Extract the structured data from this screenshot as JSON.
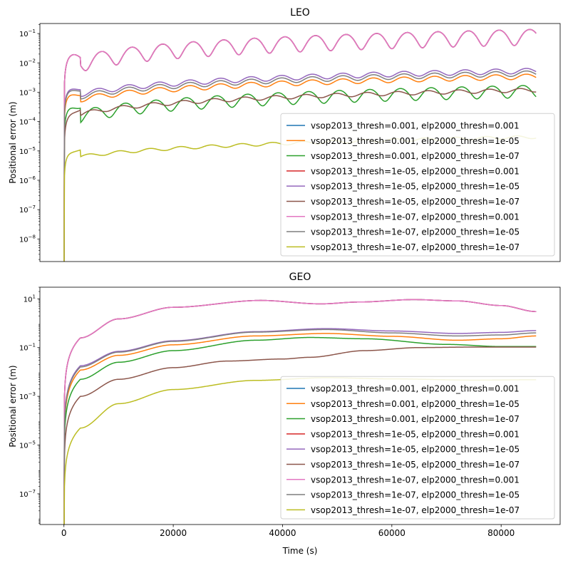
{
  "chart_data": [
    {
      "type": "line",
      "title": "LEO",
      "xlabel": "",
      "ylabel": "Positional error (m)",
      "yscale": "log",
      "xlim": [
        -4400,
        90800
      ],
      "ylim": [
        1.7e-09,
        0.22
      ],
      "x_ticks": [],
      "y_ticks": [
        {
          "value": 1e-08,
          "label": "10",
          "exp": "−8"
        },
        {
          "value": 1e-07,
          "label": "10",
          "exp": "−7"
        },
        {
          "value": 1e-06,
          "label": "10",
          "exp": "−6"
        },
        {
          "value": 1e-05,
          "label": "10",
          "exp": "−5"
        },
        {
          "value": 0.0001,
          "label": "10",
          "exp": "−4"
        },
        {
          "value": 0.001,
          "label": "10",
          "exp": "−3"
        },
        {
          "value": 0.01,
          "label": "10",
          "exp": "−2"
        },
        {
          "value": 0.1,
          "label": "10",
          "exp": "−1"
        }
      ],
      "legend_position": "lower-right",
      "grid": false,
      "series": [
        {
          "name": "vsop2013_thresh=0.001, elp2000_thresh=0.001",
          "color": "#1f77b4",
          "model": {
            "kind": "osc",
            "rise": 0.007,
            "base": 0.006,
            "trend": 0.09,
            "amp": 0.55,
            "period": 5600,
            "phase": 0.2,
            "tau": 600
          }
        },
        {
          "name": "vsop2013_thresh=0.001, elp2000_thresh=1e-05",
          "color": "#ff7f0e",
          "model": {
            "kind": "osc",
            "rise": 0.0003,
            "base": 0.0004,
            "trend": 0.0035,
            "amp": 0.2,
            "period": 5600,
            "phase": 0.9,
            "tau": 500
          }
        },
        {
          "name": "vsop2013_thresh=0.001, elp2000_thresh=1e-07",
          "color": "#2ca02c",
          "model": {
            "kind": "osc",
            "rise": 0.0002,
            "base": 0.0001,
            "trend": 0.0012,
            "amp": 0.45,
            "period": 5600,
            "phase": 1.6,
            "tau": 700
          }
        },
        {
          "name": "vsop2013_thresh=1e-05, elp2000_thresh=0.001",
          "color": "#d62728",
          "model": {
            "kind": "osc",
            "rise": 0.007,
            "base": 0.006,
            "trend": 0.09,
            "amp": 0.55,
            "period": 5600,
            "phase": 0.2,
            "tau": 600
          }
        },
        {
          "name": "vsop2013_thresh=1e-05, elp2000_thresh=1e-05",
          "color": "#9467bd",
          "model": {
            "kind": "osc",
            "rise": 0.0005,
            "base": 0.0006,
            "trend": 0.0055,
            "amp": 0.2,
            "period": 5600,
            "phase": 0.9,
            "tau": 500
          }
        },
        {
          "name": "vsop2013_thresh=1e-05, elp2000_thresh=1e-07",
          "color": "#8c564b",
          "model": {
            "kind": "osc",
            "rise": 9e-05,
            "base": 0.00012,
            "trend": 0.0012,
            "amp": 0.15,
            "period": 5600,
            "phase": 2.2,
            "tau": 900
          }
        },
        {
          "name": "vsop2013_thresh=1e-07, elp2000_thresh=0.001",
          "color": "#e377c2",
          "model": {
            "kind": "osc",
            "rise": 0.007,
            "base": 0.006,
            "trend": 0.09,
            "amp": 0.55,
            "period": 5600,
            "phase": 0.2,
            "tau": 600
          }
        },
        {
          "name": "vsop2013_thresh=1e-07, elp2000_thresh=1e-05",
          "color": "#7f7f7f",
          "model": {
            "kind": "osc",
            "rise": 0.0005,
            "base": 0.0005,
            "trend": 0.0045,
            "amp": 0.2,
            "period": 5600,
            "phase": 0.9,
            "tau": 500
          }
        },
        {
          "name": "vsop2013_thresh=1e-07, elp2000_thresh=1e-07",
          "color": "#bcbd22",
          "model": {
            "kind": "osc",
            "rise": 4.5e-06,
            "base": 5e-06,
            "trend": 3e-05,
            "amp": 0.12,
            "period": 5600,
            "phase": 2.8,
            "tau": 600
          }
        }
      ]
    },
    {
      "type": "line",
      "title": "GEO",
      "xlabel": "Time (s)",
      "ylabel": "Positional error (m)",
      "yscale": "log",
      "xlim": [
        -4400,
        90800
      ],
      "ylim": [
        5.5e-09,
        30
      ],
      "x_ticks": [
        {
          "value": 0,
          "label": "0"
        },
        {
          "value": 20000,
          "label": "20000"
        },
        {
          "value": 40000,
          "label": "40000"
        },
        {
          "value": 60000,
          "label": "60000"
        },
        {
          "value": 80000,
          "label": "80000"
        }
      ],
      "y_ticks": [
        {
          "value": 1e-07,
          "label": "10",
          "exp": "−7"
        },
        {
          "value": 1e-05,
          "label": "10",
          "exp": "−5"
        },
        {
          "value": 0.001,
          "label": "10",
          "exp": "−3"
        },
        {
          "value": 0.1,
          "label": "10",
          "exp": "−1"
        },
        {
          "value": 10,
          "label": "10",
          "exp": "1"
        }
      ],
      "legend_position": "lower-right",
      "grid": false,
      "series": [
        {
          "name": "vsop2013_thresh=0.001, elp2000_thresh=0.001",
          "color": "#1f77b4",
          "model": {
            "kind": "pts",
            "pts": [
              [
                3000,
                0.25
              ],
              [
                10000,
                1.5
              ],
              [
                20000,
                4.5
              ],
              [
                36000,
                8.6
              ],
              [
                47000,
                6.2
              ],
              [
                54000,
                7.4
              ],
              [
                64000,
                9.3
              ],
              [
                72000,
                8.2
              ],
              [
                80000,
                5.3
              ],
              [
                86400,
                3.0
              ]
            ]
          }
        },
        {
          "name": "vsop2013_thresh=0.001, elp2000_thresh=1e-05",
          "color": "#ff7f0e",
          "model": {
            "kind": "pts",
            "pts": [
              [
                3000,
                0.012
              ],
              [
                10000,
                0.048
              ],
              [
                20000,
                0.13
              ],
              [
                35000,
                0.3
              ],
              [
                48000,
                0.38
              ],
              [
                60000,
                0.29
              ],
              [
                72000,
                0.2
              ],
              [
                80000,
                0.23
              ],
              [
                86400,
                0.3
              ]
            ]
          }
        },
        {
          "name": "vsop2013_thresh=0.001, elp2000_thresh=1e-07",
          "color": "#2ca02c",
          "model": {
            "kind": "pts",
            "pts": [
              [
                3000,
                0.005
              ],
              [
                10000,
                0.025
              ],
              [
                20000,
                0.075
              ],
              [
                35000,
                0.2
              ],
              [
                45000,
                0.26
              ],
              [
                55000,
                0.23
              ],
              [
                70000,
                0.135
              ],
              [
                80000,
                0.11
              ],
              [
                86400,
                0.11
              ]
            ]
          }
        },
        {
          "name": "vsop2013_thresh=1e-05, elp2000_thresh=0.001",
          "color": "#d62728",
          "model": {
            "kind": "pts",
            "pts": [
              [
                3000,
                0.25
              ],
              [
                10000,
                1.5
              ],
              [
                20000,
                4.5
              ],
              [
                36000,
                8.6
              ],
              [
                47000,
                6.2
              ],
              [
                54000,
                7.4
              ],
              [
                64000,
                9.3
              ],
              [
                72000,
                8.2
              ],
              [
                80000,
                5.3
              ],
              [
                86400,
                3.0
              ]
            ]
          }
        },
        {
          "name": "vsop2013_thresh=1e-05, elp2000_thresh=1e-05",
          "color": "#9467bd",
          "model": {
            "kind": "pts",
            "pts": [
              [
                3000,
                0.018
              ],
              [
                10000,
                0.07
              ],
              [
                20000,
                0.19
              ],
              [
                35000,
                0.45
              ],
              [
                48000,
                0.6
              ],
              [
                60000,
                0.48
              ],
              [
                72000,
                0.38
              ],
              [
                80000,
                0.42
              ],
              [
                86400,
                0.5
              ]
            ]
          }
        },
        {
          "name": "vsop2013_thresh=1e-05, elp2000_thresh=1e-07",
          "color": "#8c564b",
          "model": {
            "kind": "pts",
            "pts": [
              [
                3000,
                0.001
              ],
              [
                10000,
                0.005
              ],
              [
                20000,
                0.015
              ],
              [
                30000,
                0.028
              ],
              [
                40000,
                0.034
              ],
              [
                45000,
                0.04
              ],
              [
                55000,
                0.075
              ],
              [
                65000,
                0.1
              ],
              [
                75000,
                0.105
              ],
              [
                86400,
                0.105
              ]
            ]
          }
        },
        {
          "name": "vsop2013_thresh=1e-07, elp2000_thresh=0.001",
          "color": "#e377c2",
          "model": {
            "kind": "pts",
            "pts": [
              [
                3000,
                0.25
              ],
              [
                10000,
                1.5
              ],
              [
                20000,
                4.5
              ],
              [
                36000,
                8.6
              ],
              [
                47000,
                6.2
              ],
              [
                54000,
                7.4
              ],
              [
                64000,
                9.3
              ],
              [
                72000,
                8.2
              ],
              [
                80000,
                5.3
              ],
              [
                86400,
                3.0
              ]
            ]
          }
        },
        {
          "name": "vsop2013_thresh=1e-07, elp2000_thresh=1e-05",
          "color": "#7f7f7f",
          "model": {
            "kind": "pts",
            "pts": [
              [
                3000,
                0.016
              ],
              [
                10000,
                0.065
              ],
              [
                20000,
                0.18
              ],
              [
                35000,
                0.43
              ],
              [
                48000,
                0.55
              ],
              [
                60000,
                0.4
              ],
              [
                72000,
                0.3
              ],
              [
                80000,
                0.33
              ],
              [
                86400,
                0.4
              ]
            ]
          }
        },
        {
          "name": "vsop2013_thresh=1e-07, elp2000_thresh=1e-07",
          "color": "#bcbd22",
          "model": {
            "kind": "pts",
            "pts": [
              [
                3000,
                5e-05
              ],
              [
                10000,
                0.0005
              ],
              [
                20000,
                0.0019
              ],
              [
                35000,
                0.0045
              ],
              [
                48000,
                0.0058
              ],
              [
                60000,
                0.0052
              ],
              [
                75000,
                0.0046
              ],
              [
                86400,
                0.0048
              ]
            ]
          }
        }
      ]
    }
  ]
}
